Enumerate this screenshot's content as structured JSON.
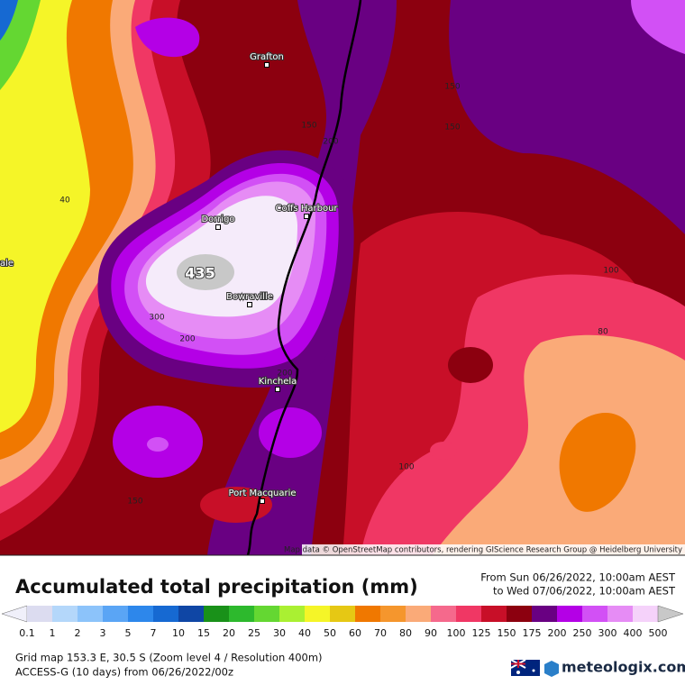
{
  "map": {
    "places": [
      {
        "label": "Grafton"
      },
      {
        "label": "Dorrigo"
      },
      {
        "label": "Coffs Harbour"
      },
      {
        "label": "Bowraville"
      },
      {
        "label": "Kinchela"
      },
      {
        "label": "Port Macquarie"
      }
    ],
    "contour_labels": [
      "150",
      "150",
      "150",
      "200",
      "40",
      "100",
      "80",
      "300",
      "200",
      "200",
      "100",
      "150"
    ],
    "edge_label": "ale",
    "max_label": "435",
    "attribution": "Map data © OpenStreetMap contributors, rendering GIScience Research Group @ Heidelberg University"
  },
  "legend": {
    "title": "Accumulated total precipitation (mm)",
    "period": [
      "From Sun 06/26/2022, 10:00am AEST",
      "to Wed 07/06/2022, 10:00am AEST"
    ],
    "ticks": [
      "0.1",
      "1",
      "2",
      "3",
      "5",
      "7",
      "10",
      "15",
      "20",
      "25",
      "30",
      "40",
      "50",
      "60",
      "70",
      "80",
      "90",
      "100",
      "125",
      "150",
      "175",
      "200",
      "250",
      "300",
      "400",
      "500"
    ],
    "colors": [
      "#dcdcf0",
      "#b4d7fa",
      "#8cc3fa",
      "#5aa5f5",
      "#2d87eb",
      "#1669d2",
      "#0f46a5",
      "#199119",
      "#2db92d",
      "#64d732",
      "#aaf032",
      "#f5f528",
      "#e6c814",
      "#f07800",
      "#f5962d",
      "#faaa78",
      "#f5698c",
      "#f03764",
      "#c80f28",
      "#8c000f",
      "#690082",
      "#b400e6",
      "#d250f5",
      "#e68cf5",
      "#f5d2fa"
    ],
    "under_color": "#f0f0fa",
    "over_color": "#c8c8c8"
  },
  "footer": {
    "grid": "Grid map 153.3 E, 30.5 S (Zoom level 4 / Resolution 400m)",
    "model": "ACCESS-G (10 days) from 06/26/2022/00z",
    "brand": "meteologix.com"
  }
}
